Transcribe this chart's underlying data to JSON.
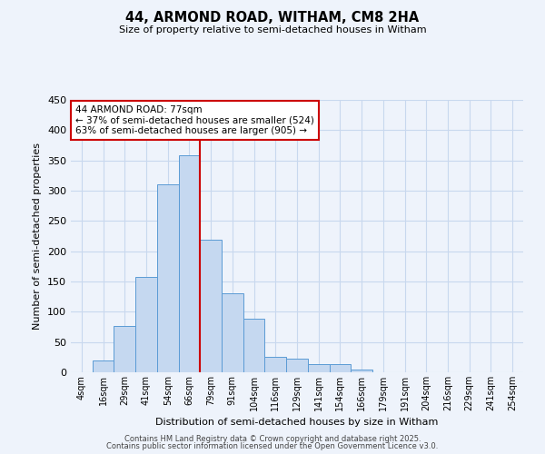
{
  "title": "44, ARMOND ROAD, WITHAM, CM8 2HA",
  "subtitle": "Size of property relative to semi-detached houses in Witham",
  "xlabel": "Distribution of semi-detached houses by size in Witham",
  "ylabel": "Number of semi-detached properties",
  "bar_labels": [
    "4sqm",
    "16sqm",
    "29sqm",
    "41sqm",
    "54sqm",
    "66sqm",
    "79sqm",
    "91sqm",
    "104sqm",
    "116sqm",
    "129sqm",
    "141sqm",
    "154sqm",
    "166sqm",
    "179sqm",
    "191sqm",
    "204sqm",
    "216sqm",
    "229sqm",
    "241sqm",
    "254sqm"
  ],
  "bar_values": [
    0,
    20,
    77,
    158,
    310,
    358,
    219,
    130,
    88,
    25,
    22,
    14,
    13,
    5,
    0,
    0,
    0,
    0,
    0,
    0,
    0
  ],
  "bar_color": "#c5d8f0",
  "bar_edge_color": "#5b9bd5",
  "grid_color": "#c8d8ee",
  "background_color": "#eef3fb",
  "property_line_index": 5,
  "property_label": "44 ARMOND ROAD: 77sqm",
  "pct_smaller": 37,
  "pct_larger": 63,
  "count_smaller": 524,
  "count_larger": 905,
  "annotation_box_color": "#ffffff",
  "annotation_box_edge_color": "#cc0000",
  "line_color": "#cc0000",
  "ylim": [
    0,
    450
  ],
  "yticks": [
    0,
    50,
    100,
    150,
    200,
    250,
    300,
    350,
    400,
    450
  ],
  "footer1": "Contains HM Land Registry data © Crown copyright and database right 2025.",
  "footer2": "Contains public sector information licensed under the Open Government Licence v3.0."
}
